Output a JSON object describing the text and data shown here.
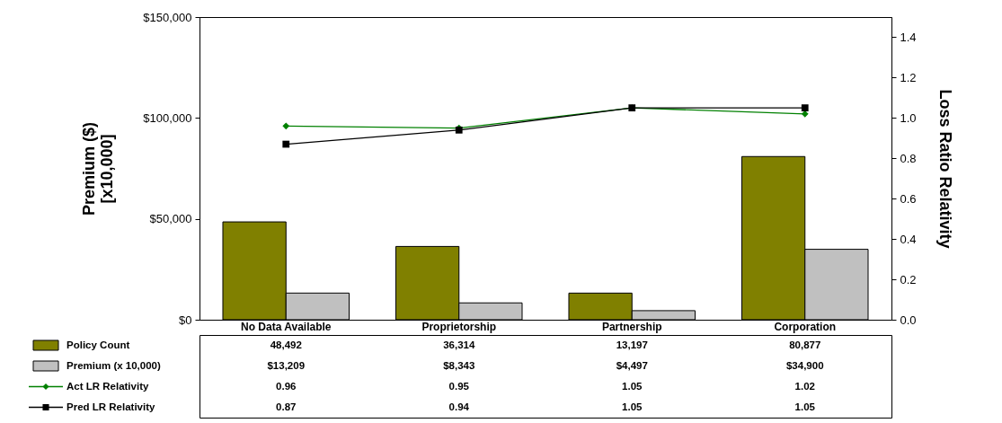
{
  "chart_data": {
    "type": "bar",
    "categories": [
      "No Data Available",
      "Proprietorship",
      "Partnership",
      "Corporation"
    ],
    "ylabel": "Premium ($)\n[x10,000]",
    "y2label": "Loss Ratio Relativity",
    "ylim": [
      0,
      150000
    ],
    "yticks": [
      {
        "value": 0,
        "label": "$0"
      },
      {
        "value": 50000,
        "label": "$50,000"
      },
      {
        "value": 100000,
        "label": "$100,000"
      },
      {
        "value": 150000,
        "label": "$150,000"
      }
    ],
    "y2lim": [
      0,
      1.5
    ],
    "y2ticks": [
      {
        "value": 0,
        "label": "0.0"
      },
      {
        "value": 0.2,
        "label": "0.2"
      },
      {
        "value": 0.4,
        "label": "0.4"
      },
      {
        "value": 0.6,
        "label": "0.6"
      },
      {
        "value": 0.8,
        "label": "0.8"
      },
      {
        "value": 1,
        "label": "1.0"
      },
      {
        "value": 1.2,
        "label": "1.2"
      },
      {
        "value": 1.4,
        "label": "1.4"
      }
    ],
    "grid": false,
    "legend": "bottom",
    "data_labels": true,
    "series": [
      {
        "name": "Policy Count",
        "type": "bar",
        "color": "#808000",
        "values": [
          48492,
          36314,
          13197,
          80877
        ],
        "value_labels": [
          "48,492",
          "36,314",
          "13,197",
          "80,877"
        ]
      },
      {
        "name": "Premium (x 10,000)",
        "type": "bar",
        "color": "#c0c0c0",
        "values": [
          13209,
          8343,
          4497,
          34900
        ],
        "value_labels": [
          "$13,209",
          "$8,343",
          "$4,497",
          "$34,900"
        ]
      },
      {
        "name": "Act LR Relativity",
        "type": "line",
        "axis": "y2",
        "marker": "diamond",
        "color": "#008000",
        "values": [
          0.96,
          0.95,
          1.05,
          1.02
        ],
        "value_labels": [
          "0.96",
          "0.95",
          "1.05",
          "1.02"
        ]
      },
      {
        "name": "Pred LR Relativity",
        "type": "line",
        "axis": "y2",
        "marker": "square",
        "color": "#000000",
        "values": [
          0.87,
          0.94,
          1.05,
          1.05
        ],
        "value_labels": [
          "0.87",
          "0.94",
          "1.05",
          "1.05"
        ]
      }
    ]
  }
}
